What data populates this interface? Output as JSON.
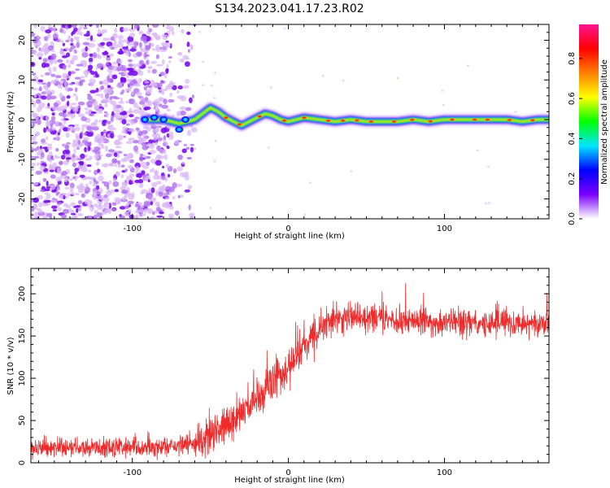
{
  "figure": {
    "title": "S134.2023.041.17.23.R02"
  },
  "chart_data": [
    {
      "type": "heatmap",
      "name": "spectrogram",
      "xlabel": "Height of straight line (km)",
      "ylabel": "Frequency (Hz)",
      "xlim": [
        -165,
        167
      ],
      "ylim": [
        -25,
        24
      ],
      "x_ticks": [
        -100,
        0,
        100
      ],
      "x_tick_labels": [
        "-100",
        "0",
        "100"
      ],
      "y_ticks": [
        -20,
        -10,
        0,
        10,
        20
      ],
      "y_tick_labels": [
        "-20",
        "-10",
        "0",
        "10",
        "20"
      ],
      "noise_region_x": [
        -165,
        -60
      ],
      "ridge": {
        "x": [
          -92,
          -80,
          -70,
          -60,
          -55,
          -50,
          -45,
          -40,
          -35,
          -30,
          -25,
          -20,
          -15,
          -10,
          -5,
          0,
          10,
          20,
          30,
          40,
          50,
          60,
          70,
          80,
          90,
          100,
          110,
          120,
          130,
          140,
          150,
          160,
          167
        ],
        "y": [
          0,
          0,
          -1,
          0,
          1.5,
          3,
          2,
          0.5,
          -0.5,
          -1.5,
          -0.5,
          0.5,
          1.5,
          1,
          0,
          -0.5,
          0.5,
          0,
          -0.5,
          0,
          -0.5,
          -0.5,
          -0.5,
          0,
          -0.5,
          0,
          0,
          0,
          0,
          0,
          -0.5,
          0,
          0
        ]
      },
      "colorbar": {
        "label": "Normalized spectral amplitude",
        "range": [
          0,
          0.97
        ],
        "ticks": [
          0,
          0.2,
          0.4,
          0.6,
          0.8
        ],
        "tick_labels": [
          "0.0",
          "0.2",
          "0.4",
          "0.6",
          "0.8"
        ],
        "colormap": [
          "#ffffff",
          "#7a00ff",
          "#0000ff",
          "#00e5ff",
          "#00ff00",
          "#ffff00",
          "#ff7f00",
          "#ff0000",
          "#ff1493"
        ]
      }
    },
    {
      "type": "line",
      "name": "snr",
      "xlabel": "Height of straight line (km)",
      "ylabel": "SNR (10 * v/v)",
      "xlim": [
        -165,
        167
      ],
      "ylim": [
        0,
        230
      ],
      "x_ticks": [
        -100,
        0,
        100
      ],
      "x_tick_labels": [
        "-100",
        "0",
        "100"
      ],
      "y_ticks": [
        0,
        50,
        100,
        150,
        200
      ],
      "y_tick_labels": [
        "0",
        "50",
        "100",
        "150",
        "200"
      ],
      "color": "#ee2a2a",
      "x": [
        -165,
        -120,
        -80,
        -60,
        -50,
        -40,
        -30,
        -20,
        -10,
        0,
        10,
        20,
        30,
        40,
        50,
        60,
        80,
        100,
        120,
        140,
        167
      ],
      "y": [
        18,
        18,
        18,
        22,
        30,
        45,
        60,
        75,
        95,
        115,
        140,
        160,
        170,
        172,
        172,
        170,
        168,
        165,
        166,
        165,
        165
      ]
    }
  ]
}
